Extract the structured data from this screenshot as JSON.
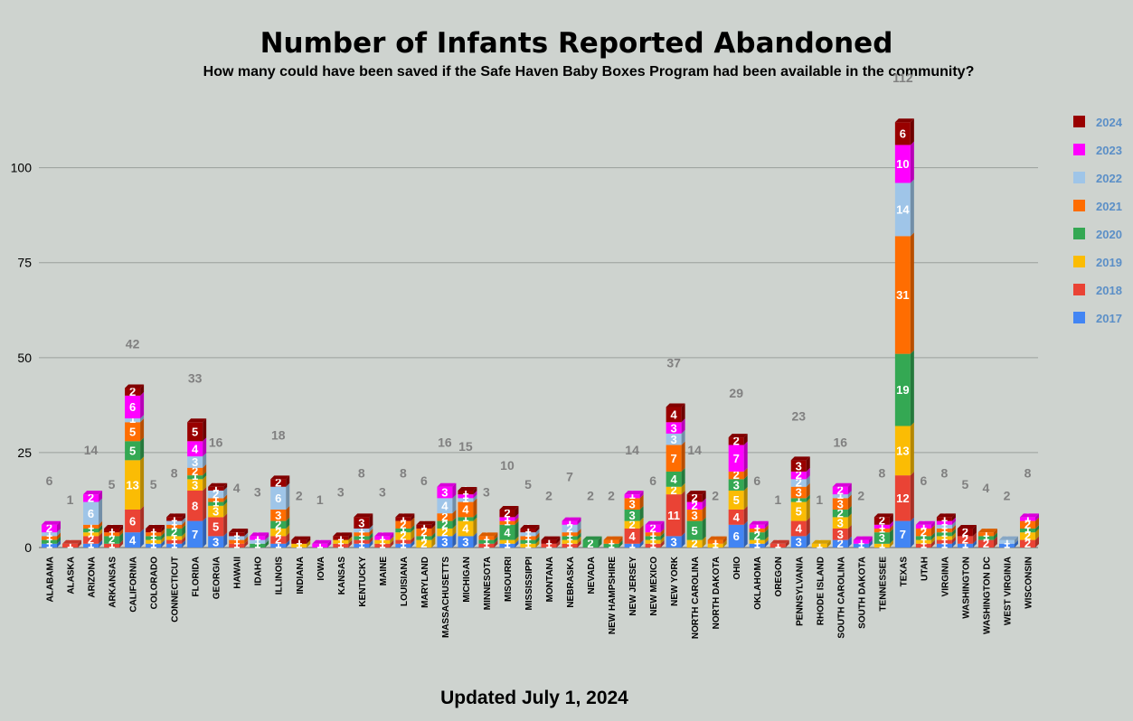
{
  "title": "Number of Infants Reported Abandoned",
  "subtitle": "How many could have been saved if the Safe Haven Baby Boxes Program had been available in the community?",
  "footer": "Updated July 1, 2024",
  "chart_data": {
    "type": "bar",
    "stacked": true,
    "title": "Number of Infants Reported Abandoned",
    "xlabel": "",
    "ylabel": "",
    "ylim": [
      0,
      118
    ],
    "yticks": [
      0,
      25,
      50,
      75,
      100
    ],
    "grid": true,
    "legend_position": "right",
    "categories": [
      "ALABAMA",
      "ALASKA",
      "ARIZONA",
      "ARKANSAS",
      "CALIFORNIA",
      "COLORADO",
      "CONNECTICUT",
      "FLORIDA",
      "GEORGIA",
      "HAWAII",
      "IDAHO",
      "ILLINOIS",
      "INDIANA",
      "IOWA",
      "KANSAS",
      "KENTUCKY",
      "MAINE",
      "LOUISIANA",
      "MARYLAND",
      "MASSACHUSETTS",
      "MICHIGAN",
      "MINNESOTA",
      "MISOURRI",
      "MISSISSIPPI",
      "MONTANA",
      "NEBRASKA",
      "NEVADA",
      "NEW HAMPSHIRE",
      "NEW JERSEY",
      "NEW MEXICO",
      "NEW YORK",
      "NORTH CAROLINA",
      "NORTH DAKOTA",
      "OHIO",
      "OKLAHOMA",
      "OREGON",
      "PENNSYLVANIA",
      "RHODE ISLAND",
      "SOUTH CAROLINA",
      "SOUTH DAKOTA",
      "TENNESSEE",
      "TEXAS",
      "UTAH",
      "VIRGINIA",
      "WASHINGTON",
      "WASHINGTON DC",
      "WEST VIRGINIA",
      "WISCONSIN"
    ],
    "totals": [
      6,
      1,
      14,
      5,
      42,
      5,
      8,
      33,
      16,
      4,
      3,
      18,
      2,
      1,
      3,
      8,
      3,
      8,
      6,
      16,
      15,
      3,
      10,
      5,
      2,
      7,
      2,
      2,
      14,
      6,
      37,
      14,
      2,
      29,
      6,
      1,
      23,
      1,
      16,
      2,
      8,
      112,
      6,
      8,
      5,
      4,
      2,
      8
    ],
    "series": [
      {
        "name": "2017",
        "color": "#4285f4",
        "values": [
          1,
          0,
          1,
          0,
          4,
          1,
          1,
          7,
          3,
          0,
          0,
          1,
          0,
          0,
          0,
          1,
          0,
          1,
          0,
          3,
          3,
          0,
          1,
          0,
          0,
          0,
          0,
          0,
          1,
          0,
          3,
          0,
          0,
          6,
          1,
          0,
          3,
          0,
          2,
          1,
          0,
          7,
          0,
          1,
          1,
          0,
          1,
          0
        ]
      },
      {
        "name": "2018",
        "color": "#ea4335",
        "values": [
          0,
          1,
          2,
          1,
          6,
          0,
          1,
          8,
          5,
          1,
          0,
          2,
          0,
          0,
          1,
          1,
          1,
          1,
          0,
          0,
          0,
          1,
          0,
          0,
          1,
          1,
          0,
          0,
          4,
          1,
          11,
          0,
          0,
          4,
          0,
          1,
          4,
          0,
          3,
          0,
          0,
          12,
          1,
          1,
          2,
          2,
          0,
          2
        ]
      },
      {
        "name": "2019",
        "color": "#fbbc04",
        "values": [
          0,
          0,
          1,
          0,
          13,
          1,
          1,
          3,
          3,
          0,
          0,
          2,
          1,
          0,
          1,
          0,
          1,
          2,
          2,
          2,
          4,
          0,
          1,
          1,
          0,
          1,
          0,
          0,
          2,
          1,
          2,
          2,
          1,
          5,
          1,
          0,
          5,
          1,
          3,
          0,
          1,
          13,
          1,
          1,
          0,
          0,
          0,
          2
        ]
      },
      {
        "name": "2020",
        "color": "#34a853",
        "values": [
          1,
          0,
          1,
          2,
          5,
          1,
          2,
          1,
          1,
          0,
          1,
          2,
          0,
          0,
          0,
          1,
          0,
          1,
          1,
          2,
          1,
          1,
          4,
          1,
          0,
          1,
          2,
          1,
          3,
          1,
          4,
          5,
          0,
          3,
          2,
          0,
          1,
          0,
          2,
          0,
          3,
          19,
          1,
          1,
          0,
          1,
          0,
          1
        ]
      },
      {
        "name": "2021",
        "color": "#ff6d01",
        "values": [
          1,
          0,
          1,
          1,
          5,
          1,
          1,
          2,
          1,
          1,
          0,
          3,
          0,
          0,
          0,
          1,
          0,
          2,
          2,
          2,
          4,
          1,
          1,
          1,
          0,
          1,
          0,
          1,
          3,
          1,
          7,
          3,
          1,
          2,
          1,
          0,
          3,
          0,
          3,
          0,
          1,
          31,
          2,
          1,
          0,
          1,
          0,
          2
        ]
      },
      {
        "name": "2022",
        "color": "#9fc5e8",
        "values": [
          1,
          0,
          6,
          0,
          1,
          0,
          1,
          3,
          2,
          1,
          1,
          6,
          0,
          0,
          0,
          1,
          0,
          0,
          0,
          4,
          1,
          0,
          0,
          1,
          0,
          2,
          0,
          0,
          0,
          0,
          3,
          0,
          0,
          0,
          0,
          0,
          2,
          0,
          1,
          0,
          0,
          14,
          0,
          1,
          0,
          0,
          1,
          0
        ]
      },
      {
        "name": "2023",
        "color": "#ff00ff",
        "values": [
          2,
          0,
          2,
          0,
          6,
          0,
          0,
          4,
          0,
          0,
          1,
          0,
          0,
          1,
          0,
          0,
          1,
          0,
          0,
          3,
          1,
          0,
          1,
          0,
          0,
          1,
          0,
          0,
          1,
          2,
          3,
          2,
          0,
          7,
          1,
          0,
          2,
          0,
          2,
          1,
          1,
          10,
          1,
          1,
          0,
          0,
          0,
          1
        ]
      },
      {
        "name": "2024",
        "color": "#990000",
        "values": [
          0,
          0,
          0,
          1,
          2,
          1,
          1,
          5,
          1,
          1,
          0,
          2,
          1,
          0,
          1,
          3,
          0,
          1,
          1,
          0,
          1,
          0,
          2,
          1,
          1,
          0,
          0,
          0,
          0,
          0,
          4,
          2,
          0,
          2,
          0,
          0,
          3,
          0,
          0,
          0,
          2,
          6,
          0,
          1,
          2,
          0,
          0,
          0
        ]
      }
    ]
  },
  "legend": [
    {
      "label": "2024",
      "color": "#990000"
    },
    {
      "label": "2023",
      "color": "#ff00ff"
    },
    {
      "label": "2022",
      "color": "#9fc5e8"
    },
    {
      "label": "2021",
      "color": "#ff6d01"
    },
    {
      "label": "2020",
      "color": "#34a853"
    },
    {
      "label": "2019",
      "color": "#fbbc04"
    },
    {
      "label": "2018",
      "color": "#ea4335"
    },
    {
      "label": "2017",
      "color": "#4285f4"
    }
  ]
}
